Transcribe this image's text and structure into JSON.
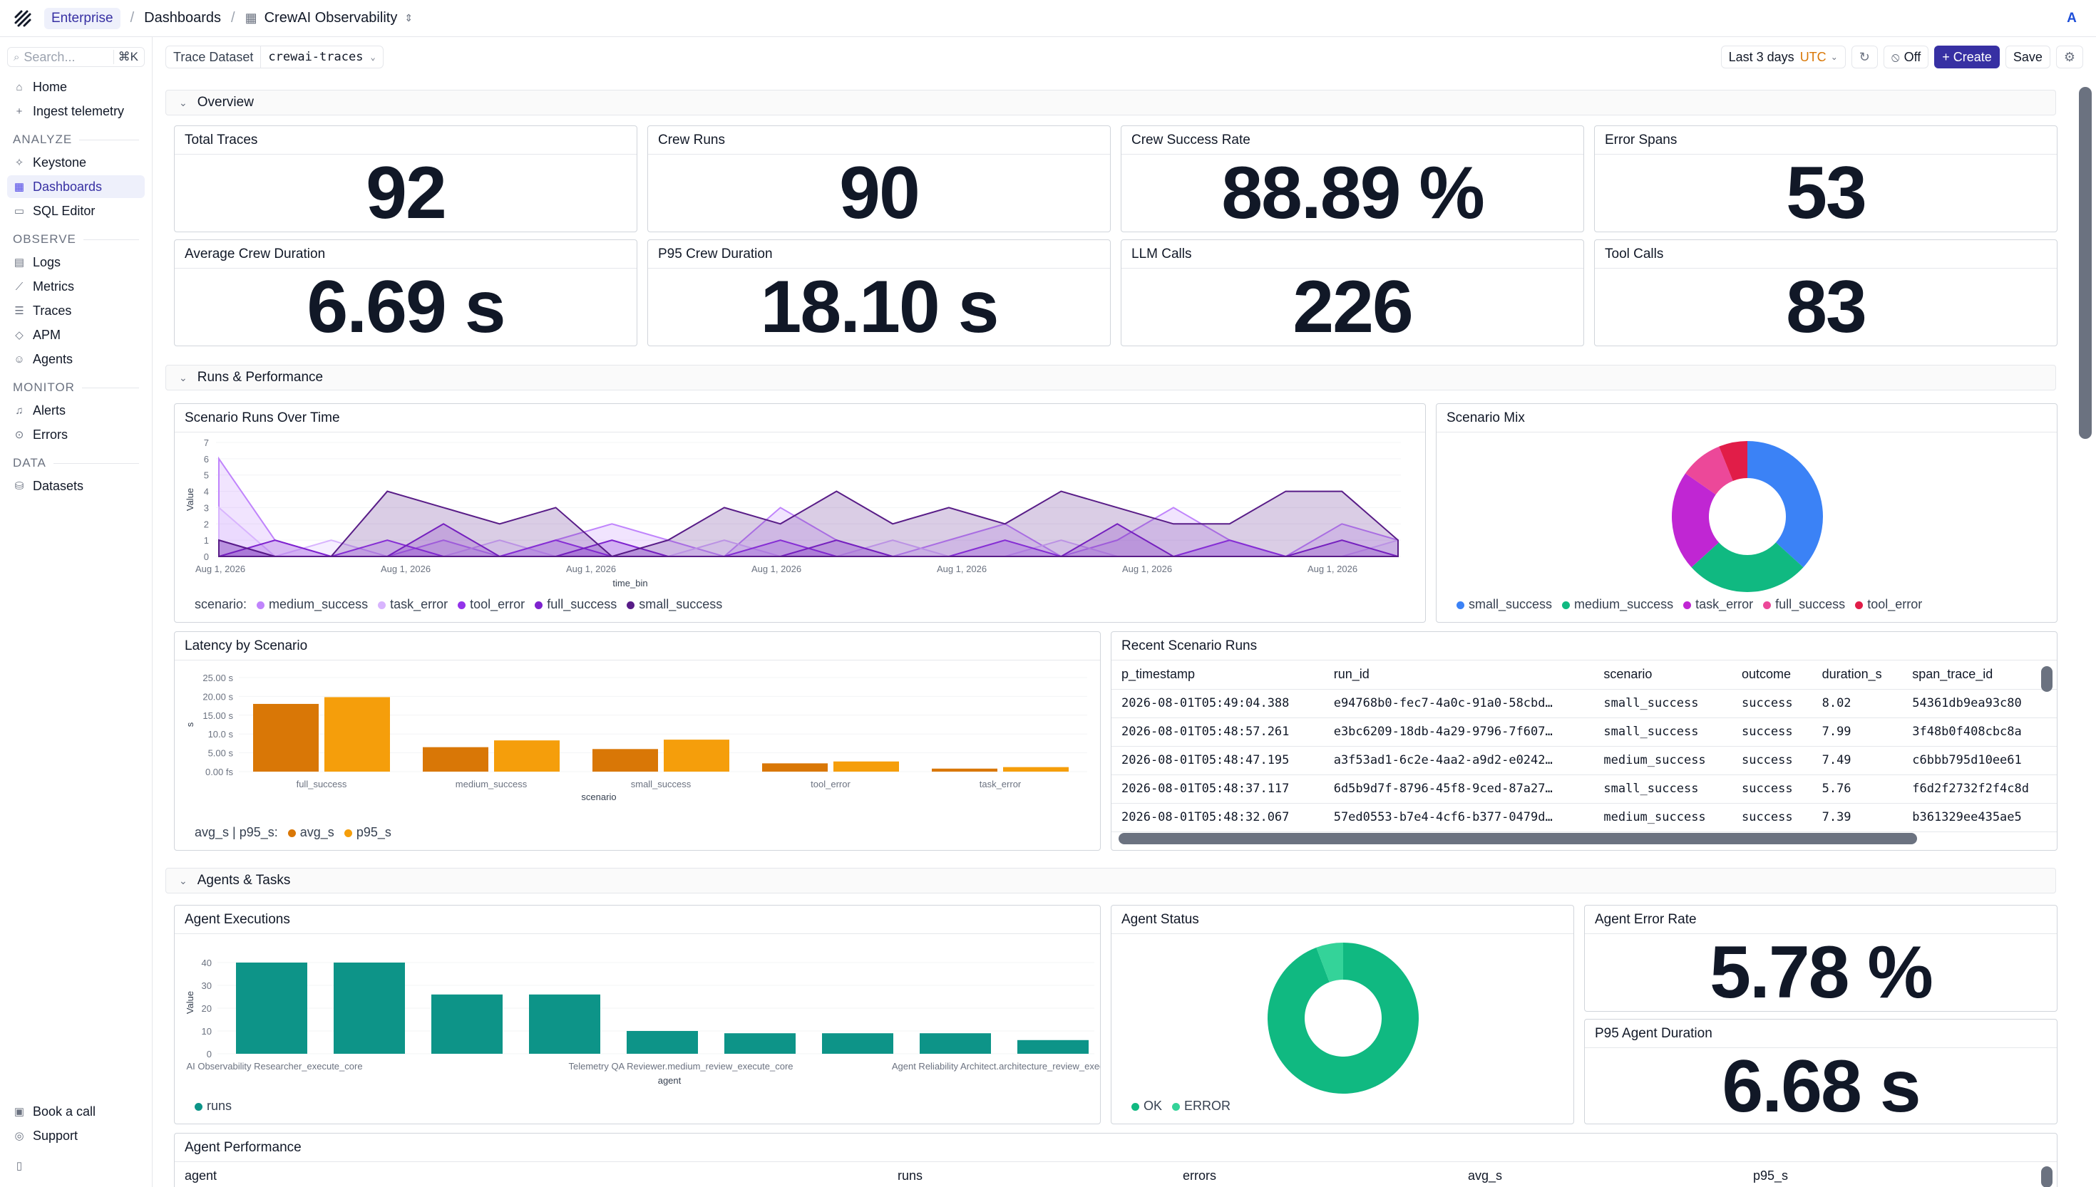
{
  "topbar": {
    "workspace": "Enterprise",
    "breadcrumb": [
      "Dashboards",
      "CrewAI Observability"
    ],
    "avatar": "A"
  },
  "sidebar": {
    "search_placeholder": "Search...",
    "search_shortcut": "⌘K",
    "top_items": [
      {
        "label": "Home",
        "icon": "home-icon"
      },
      {
        "label": "Ingest telemetry",
        "icon": "plus-icon"
      }
    ],
    "groups": [
      {
        "title": "ANALYZE",
        "items": [
          {
            "label": "Keystone",
            "icon": "sparkle-icon"
          },
          {
            "label": "Dashboards",
            "icon": "grid-icon",
            "active": true
          },
          {
            "label": "SQL Editor",
            "icon": "terminal-icon"
          }
        ]
      },
      {
        "title": "OBSERVE",
        "items": [
          {
            "label": "Logs",
            "icon": "file-icon"
          },
          {
            "label": "Metrics",
            "icon": "chart-icon"
          },
          {
            "label": "Traces",
            "icon": "traces-icon"
          },
          {
            "label": "APM",
            "icon": "diamond-icon"
          },
          {
            "label": "Agents",
            "icon": "bot-icon"
          }
        ]
      },
      {
        "title": "MONITOR",
        "items": [
          {
            "label": "Alerts",
            "icon": "bell-icon"
          },
          {
            "label": "Errors",
            "icon": "alert-circle-icon"
          }
        ]
      },
      {
        "title": "DATA",
        "items": [
          {
            "label": "Datasets",
            "icon": "database-icon"
          }
        ]
      }
    ],
    "bottom_items": [
      {
        "label": "Book a call",
        "icon": "calendar-icon"
      },
      {
        "label": "Support",
        "icon": "support-icon"
      }
    ]
  },
  "toolbar": {
    "dataset_label": "Trace Dataset",
    "dataset_value": "crewai-traces",
    "time_range": "Last 3 days",
    "timezone": "UTC",
    "refresh_label": "Off",
    "create_label": "+ Create",
    "save_label": "Save"
  },
  "sections": {
    "overview": "Overview",
    "runs": "Runs & Performance",
    "agents": "Agents & Tasks"
  },
  "overview_stats": [
    {
      "title": "Total Traces",
      "value": "92"
    },
    {
      "title": "Crew Runs",
      "value": "90"
    },
    {
      "title": "Crew Success Rate",
      "value": "88.89 %"
    },
    {
      "title": "Error Spans",
      "value": "53"
    },
    {
      "title": "Average Crew Duration",
      "value": "6.69 s"
    },
    {
      "title": "P95 Crew Duration",
      "value": "18.10 s"
    },
    {
      "title": "LLM Calls",
      "value": "226"
    },
    {
      "title": "Tool Calls",
      "value": "83"
    }
  ],
  "panels": {
    "scenario_runs": "Scenario Runs Over Time",
    "scenario_mix": "Scenario Mix",
    "latency": "Latency by Scenario",
    "recent_runs": "Recent Scenario Runs",
    "agent_exec": "Agent Executions",
    "agent_status": "Agent Status",
    "agent_error_rate": "Agent Error Rate",
    "p95_agent_duration": "P95 Agent Duration",
    "agent_performance": "Agent Performance"
  },
  "agent_error_rate_value": "5.78 %",
  "p95_agent_duration_value": "6.68 s",
  "recent_runs": {
    "columns": [
      "p_timestamp",
      "run_id",
      "scenario",
      "outcome",
      "duration_s",
      "span_trace_id"
    ],
    "rows": [
      [
        "2026-08-01T05:49:04.388",
        "e94768b0-fec7-4a0c-91a0-58cbd…",
        "small_success",
        "success",
        "8.02",
        "54361db9ea93c80"
      ],
      [
        "2026-08-01T05:48:57.261",
        "e3bc6209-18db-4a29-9796-7f607…",
        "small_success",
        "success",
        "7.99",
        "3f48b0f408cbc8a"
      ],
      [
        "2026-08-01T05:48:47.195",
        "a3f53ad1-6c2e-4aa2-a9d2-e0242…",
        "medium_success",
        "success",
        "7.49",
        "c6bbb795d10ee61"
      ],
      [
        "2026-08-01T05:48:37.117",
        "6d5b9d7f-8796-45f8-9ced-87a27…",
        "small_success",
        "success",
        "5.76",
        "f6d2f2732f2f4c8d"
      ],
      [
        "2026-08-01T05:48:32.067",
        "57ed0553-b7e4-4cf6-b377-0479d…",
        "medium_success",
        "success",
        "7.39",
        "b361329ee435ae5"
      ]
    ]
  },
  "agent_performance_columns": [
    "agent",
    "runs",
    "errors",
    "avg_s",
    "p95_s"
  ],
  "chart_data": [
    {
      "id": "scenario_runs",
      "type": "area",
      "xlabel": "time_bin",
      "ylabel": "Value",
      "ylim": [
        0,
        7
      ],
      "yticks": [
        0,
        1,
        2,
        3,
        4,
        5,
        6,
        7
      ],
      "x_tick_labels": [
        "Aug 1, 2026",
        "Aug 1, 2026",
        "Aug 1, 2026",
        "Aug 1, 2026",
        "Aug 1, 2026",
        "Aug 1, 2026",
        "Aug 1, 2026"
      ],
      "legend_title": "scenario:",
      "colors": {
        "medium_success": "#c084fc",
        "task_error": "#d8b4fe",
        "tool_error": "#9333ea",
        "full_success": "#7e22ce",
        "small_success": "#581c87"
      },
      "series": [
        {
          "name": "medium_success",
          "values": [
            6,
            1,
            0,
            0,
            1,
            0,
            1,
            2,
            1,
            0,
            3,
            1,
            0,
            1,
            2,
            0,
            1,
            3,
            1,
            0,
            2,
            1
          ]
        },
        {
          "name": "task_error",
          "values": [
            3,
            0,
            1,
            0,
            0,
            1,
            0,
            1,
            0,
            1,
            0,
            0,
            1,
            0,
            0,
            1,
            0,
            0,
            1,
            0,
            0,
            1
          ]
        },
        {
          "name": "tool_error",
          "values": [
            1,
            0,
            0,
            1,
            0,
            0,
            1,
            0,
            0,
            0,
            1,
            0,
            0,
            0,
            1,
            0,
            0,
            0,
            1,
            0,
            0,
            0
          ]
        },
        {
          "name": "full_success",
          "values": [
            0,
            1,
            0,
            0,
            2,
            0,
            0,
            1,
            0,
            0,
            0,
            1,
            0,
            0,
            0,
            0,
            2,
            0,
            0,
            0,
            1,
            0
          ]
        },
        {
          "name": "small_success",
          "values": [
            1,
            0,
            0,
            4,
            3,
            2,
            3,
            0,
            1,
            3,
            2,
            4,
            2,
            3,
            2,
            4,
            3,
            2,
            2,
            4,
            4,
            1
          ]
        }
      ]
    },
    {
      "id": "scenario_mix",
      "type": "pie",
      "categories": [
        "small_success",
        "medium_success",
        "task_error",
        "full_success",
        "tool_error"
      ],
      "values": [
        36,
        26,
        21,
        9,
        6
      ],
      "colors": [
        "#3b82f6",
        "#10b981",
        "#c026d3",
        "#ec4899",
        "#e11d48"
      ]
    },
    {
      "id": "latency",
      "type": "bar",
      "categories": [
        "full_success",
        "medium_success",
        "small_success",
        "tool_error",
        "task_error"
      ],
      "xlabel": "scenario",
      "ylabel": "s",
      "ylim": [
        0,
        25
      ],
      "yticks": [
        "0.00 fs",
        "5.00 s",
        "10.0 s",
        "15.00 s",
        "20.00 s",
        "25.00 s"
      ],
      "legend_title": "avg_s | p95_s:",
      "series": [
        {
          "name": "avg_s",
          "values": [
            18.0,
            6.5,
            6.0,
            2.2,
            0.8
          ],
          "color": "#d97706"
        },
        {
          "name": "p95_s",
          "values": [
            19.8,
            8.3,
            8.5,
            2.7,
            1.2
          ],
          "color": "#f59e0b"
        }
      ]
    },
    {
      "id": "agent_exec",
      "type": "bar",
      "categories": [
        "AI Observability Researcher_execute_core",
        "",
        "Telemetry QA Reviewer.medium_review_execute_core",
        "",
        "Agent Reliability Architect.architecture_review_execute_core",
        "",
        "",
        "",
        ""
      ],
      "xlabel": "agent",
      "ylabel": "Value",
      "ylim": [
        0,
        45
      ],
      "yticks": [
        0,
        10,
        20,
        30,
        40
      ],
      "series": [
        {
          "name": "runs",
          "values": [
            40,
            40,
            26,
            26,
            10,
            9,
            9,
            9,
            6
          ],
          "color": "#0d9488"
        }
      ]
    },
    {
      "id": "agent_status",
      "type": "pie",
      "categories": [
        "OK",
        "ERROR"
      ],
      "values": [
        94.22,
        5.78
      ],
      "colors": [
        "#10b981",
        "#34d399"
      ]
    }
  ]
}
